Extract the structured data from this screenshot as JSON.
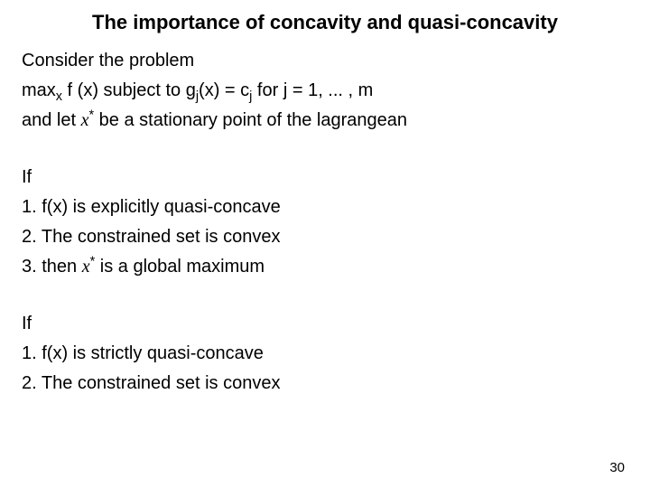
{
  "title": "The importance of concavity and quasi-concavity",
  "lines": {
    "l1": "Consider the problem",
    "l2a": "max",
    "l2b": "x",
    "l2c": "  f (x) subject to g",
    "l2d": "j",
    "l2e": "(x) = c",
    "l2f": "j",
    "l2g": " for j = 1, ... , m",
    "l3a": "and let ",
    "l3b": "x",
    "l3c": "*",
    "l3d": " be a stationary point of the lagrangean",
    "if1": "If",
    "a1": "1. f(x) is explicitly quasi-concave",
    "a2": "2. The constrained set is convex",
    "a3a": "3. then ",
    "a3b": "x",
    "a3c": "*",
    "a3d": " is a global maximum",
    "if2": "If",
    "b1": "1. f(x) is strictly quasi-concave",
    "b2": "2. The constrained set is convex"
  },
  "pageNumber": "30"
}
